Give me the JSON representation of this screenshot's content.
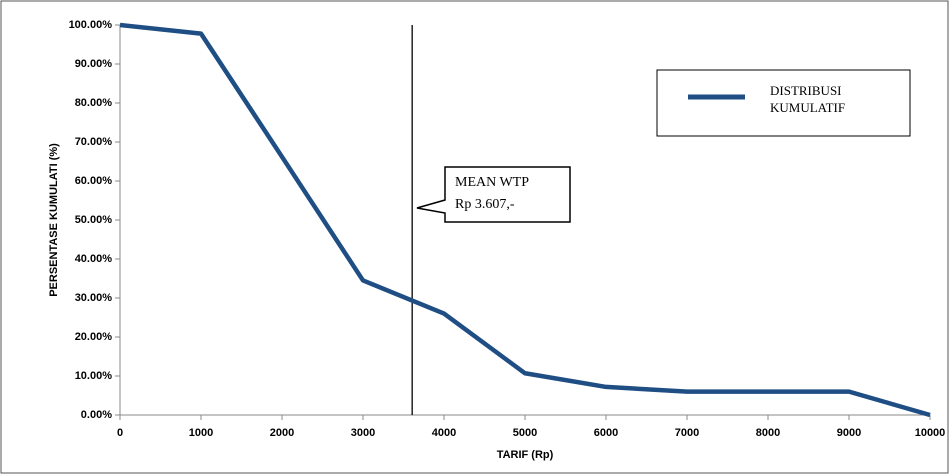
{
  "chart_data": {
    "type": "line",
    "x_label": "TARIF (Rp)",
    "y_label": "PERSENTASE KUMULATI (%)",
    "x": [
      0,
      1000,
      2000,
      3000,
      4000,
      5000,
      6000,
      7000,
      8000,
      9000,
      10000
    ],
    "series": [
      {
        "name": "DISTRIBUSI KUMULATIF",
        "color": "#1f4e85",
        "values": [
          100,
          97.8,
          66.2,
          34.5,
          26,
          10.7,
          7.2,
          6,
          6,
          6,
          0
        ]
      }
    ],
    "xlim": [
      0,
      10000
    ],
    "xticks": [
      0,
      1000,
      2000,
      3000,
      4000,
      5000,
      6000,
      7000,
      8000,
      9000,
      10000
    ],
    "ylim": [
      0,
      100
    ],
    "yticks": [
      {
        "value": 0,
        "label": "0.00%"
      },
      {
        "value": 10,
        "label": "10.00%"
      },
      {
        "value": 20,
        "label": "20.00%"
      },
      {
        "value": 30,
        "label": "30.00%"
      },
      {
        "value": 40,
        "label": "40.00%"
      },
      {
        "value": 50,
        "label": "50.00%"
      },
      {
        "value": 60,
        "label": "60.00%"
      },
      {
        "value": 70,
        "label": "70.00%"
      },
      {
        "value": 80,
        "label": "80.00%"
      },
      {
        "value": 90,
        "label": "90.00%"
      },
      {
        "value": 100,
        "label": "100.00%"
      }
    ],
    "vline": {
      "value": 3607,
      "label": [
        "MEAN WTP",
        "Rp 3.607,-"
      ]
    },
    "legend": "top-right"
  }
}
